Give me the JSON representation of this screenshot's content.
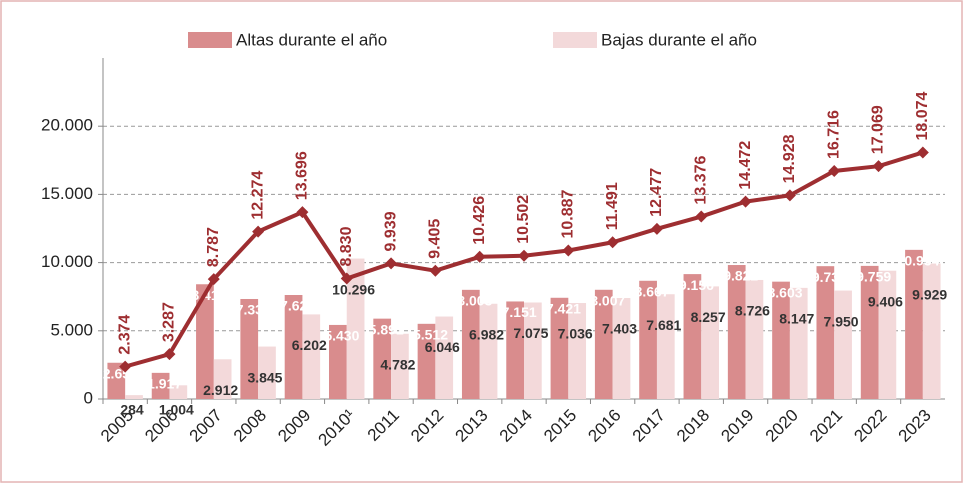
{
  "chart_data": {
    "type": "bar-line",
    "categories": [
      "2005",
      "2006",
      "2007",
      "2008",
      "2009",
      "2010¹",
      "2011",
      "2012",
      "2013",
      "2014",
      "2015",
      "2016",
      "2017",
      "2018",
      "2019",
      "2020",
      "2021",
      "2022",
      "2023"
    ],
    "series": [
      {
        "name": "Altas durante el año",
        "color": "#d98c8d",
        "values": [
          2658,
          1917,
          8412,
          7332,
          7624,
          5430,
          5891,
          5512,
          8003,
          7151,
          7421,
          8007,
          8667,
          9156,
          9822,
          8603,
          9738,
          9759,
          10934
        ],
        "value_labels": [
          "2.658",
          "1.917",
          "8.412",
          "7.332",
          "7.624",
          "5.430",
          "5.891",
          "5.512",
          "8.003",
          "7.151",
          "7.421",
          "8.007",
          "8.667",
          "9.156",
          "9.822",
          "8.603",
          "9.738",
          "9.759",
          "10.934"
        ]
      },
      {
        "name": "Bajas durante el año",
        "color": "#f3d9da",
        "values": [
          284,
          1004,
          2912,
          3845,
          6202,
          10296,
          4782,
          6046,
          6982,
          7075,
          7036,
          7403,
          7681,
          8257,
          8726,
          8147,
          7950,
          9406,
          9929
        ],
        "value_labels": [
          "284",
          "1.004",
          "2.912",
          "3.845",
          "6.202",
          "10.296",
          "4.782",
          "6.046",
          "6.982",
          "7.075",
          "7.036",
          "7.403",
          "7.681",
          "8.257",
          "8.726",
          "8.147",
          "7.950",
          "9.406",
          "9.929"
        ]
      }
    ],
    "line": {
      "color": "#9e2e31",
      "values": [
        2374,
        3287,
        8787,
        12274,
        13696,
        8830,
        9939,
        9405,
        10426,
        10502,
        10887,
        11491,
        12477,
        13376,
        14472,
        14928,
        16716,
        17069,
        18074
      ],
      "value_labels": [
        "2.374",
        "3.287",
        "8.787",
        "12.274",
        "13.696",
        "8.830",
        "9.939",
        "9.405",
        "10.426",
        "10.502",
        "10.887",
        "11.491",
        "12.477",
        "13.376",
        "14.472",
        "14.928",
        "16.716",
        "17.069",
        "18.074"
      ]
    },
    "ylim": [
      0,
      25000
    ],
    "yticks": [
      0,
      {
        "value": 5000,
        "label": "5.000"
      },
      {
        "value": 10000,
        "label": "10.000"
      },
      {
        "value": 15000,
        "label": "15.000"
      },
      {
        "value": 20000,
        "label": "20.000"
      }
    ],
    "grid": true,
    "legend": "top"
  }
}
